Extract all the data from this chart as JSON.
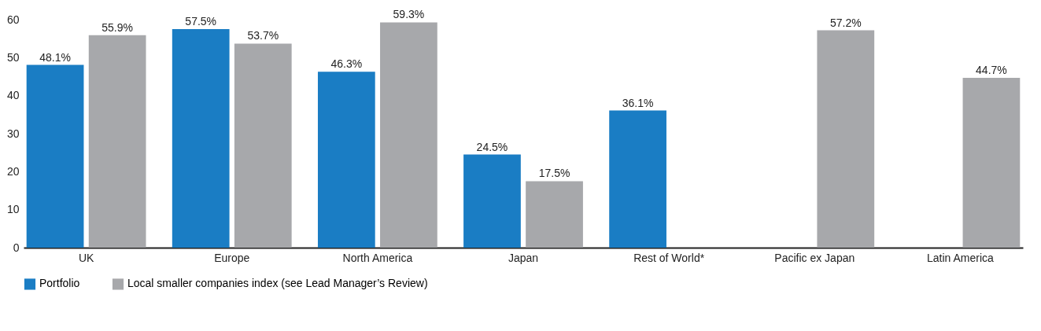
{
  "chart_data": {
    "type": "bar",
    "categories": [
      "UK",
      "Europe",
      "North America",
      "Japan",
      "Rest of World*",
      "Pacific ex Japan",
      "Latin America"
    ],
    "series": [
      {
        "name": "Portfolio",
        "color": "#1a7dc4",
        "values": [
          48.1,
          57.5,
          46.3,
          24.5,
          36.1,
          null,
          null
        ],
        "value_labels": [
          "48.1%",
          "57.5%",
          "46.3%",
          "24.5%",
          "36.1%",
          null,
          null
        ]
      },
      {
        "name": "Local smaller companies index (see Lead Manager’s Review)",
        "color": "#a7a8ab",
        "values": [
          55.9,
          53.7,
          59.3,
          17.5,
          null,
          57.2,
          44.7
        ],
        "value_labels": [
          "55.9%",
          "53.7%",
          "59.3%",
          "17.5%",
          null,
          "57.2%",
          "44.7%"
        ]
      }
    ],
    "ylim": [
      0,
      60
    ],
    "yticks": [
      0,
      10,
      20,
      30,
      40,
      50,
      60
    ],
    "grid": false,
    "legend": "bottom left"
  }
}
